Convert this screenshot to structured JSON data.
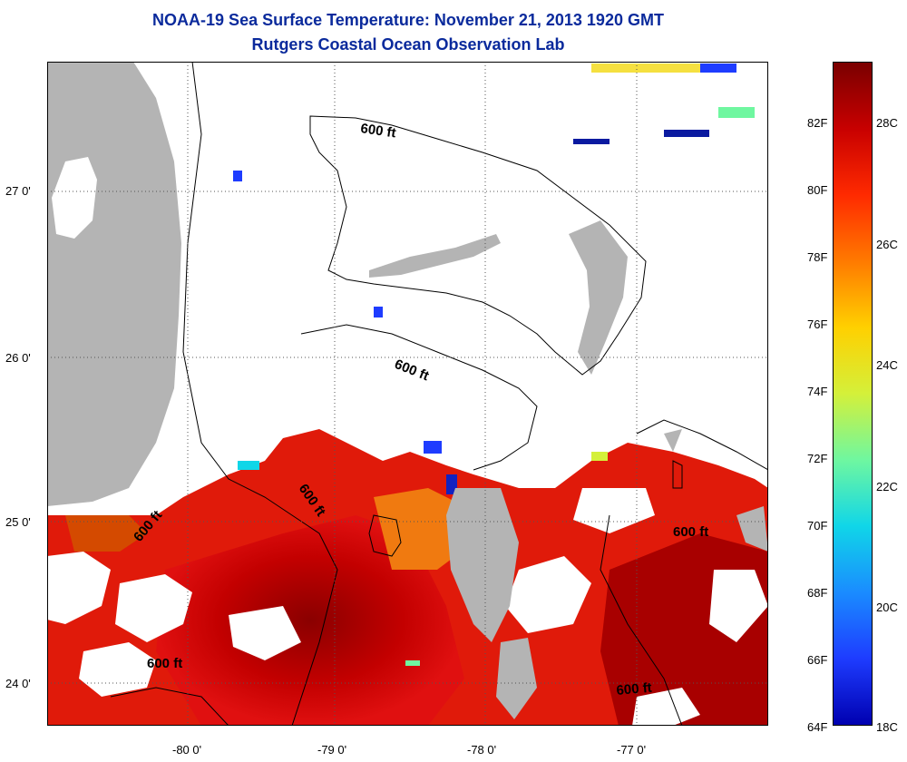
{
  "title": {
    "line1": "NOAA-19 Sea Surface Temperature:  November 21, 2013 1920 GMT",
    "line2": "Rutgers Coastal Ocean Observation Lab"
  },
  "map": {
    "lat_labels": [
      "27 0'",
      "26 0'",
      "25 0'",
      "24 0'"
    ],
    "lon_labels": [
      "-80 0'",
      "-79 0'",
      "-78 0'",
      "-77 0'"
    ],
    "contour_label": "600 ft",
    "land_color": "#b4b4b4",
    "no_data_color": "#ffffff"
  },
  "colorbar": {
    "fahrenheit": [
      "82F",
      "80F",
      "78F",
      "76F",
      "74F",
      "72F",
      "70F",
      "68F",
      "66F",
      "64F"
    ],
    "celsius": [
      "28C",
      "26C",
      "24C",
      "22C",
      "20C",
      "18C"
    ],
    "colors": [
      "#7a0000",
      "#c80000",
      "#ff2a00",
      "#ff7a00",
      "#ffd000",
      "#d4f03a",
      "#6ff7a0",
      "#10d6e8",
      "#1a8cff",
      "#1e3cff",
      "#0000b0"
    ]
  }
}
